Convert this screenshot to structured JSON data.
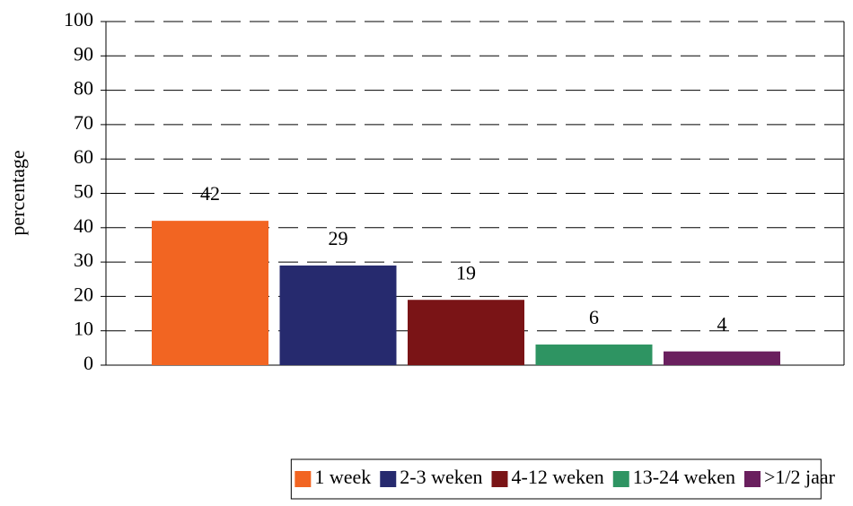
{
  "chart_data": {
    "type": "bar",
    "y_label": "percentage",
    "categories": [
      null
    ],
    "series": [
      {
        "name": "1 week",
        "color": "#f26522",
        "values": [
          42
        ]
      },
      {
        "name": "2-3 weken",
        "color": "#262a6e",
        "values": [
          29
        ]
      },
      {
        "name": "4-12 weken",
        "color": "#7a1416",
        "values": [
          19
        ]
      },
      {
        "name": "13-24 weken",
        "color": "#2e9462",
        "values": [
          6
        ]
      },
      {
        "name": ">1/2 jaar",
        "color": "#6a1f5e",
        "values": [
          4
        ]
      }
    ],
    "ylim": [
      0,
      100
    ],
    "yticks": [
      0,
      10,
      20,
      30,
      40,
      50,
      60,
      70,
      80,
      90,
      100
    ],
    "grid": true,
    "legend": "bottom"
  }
}
